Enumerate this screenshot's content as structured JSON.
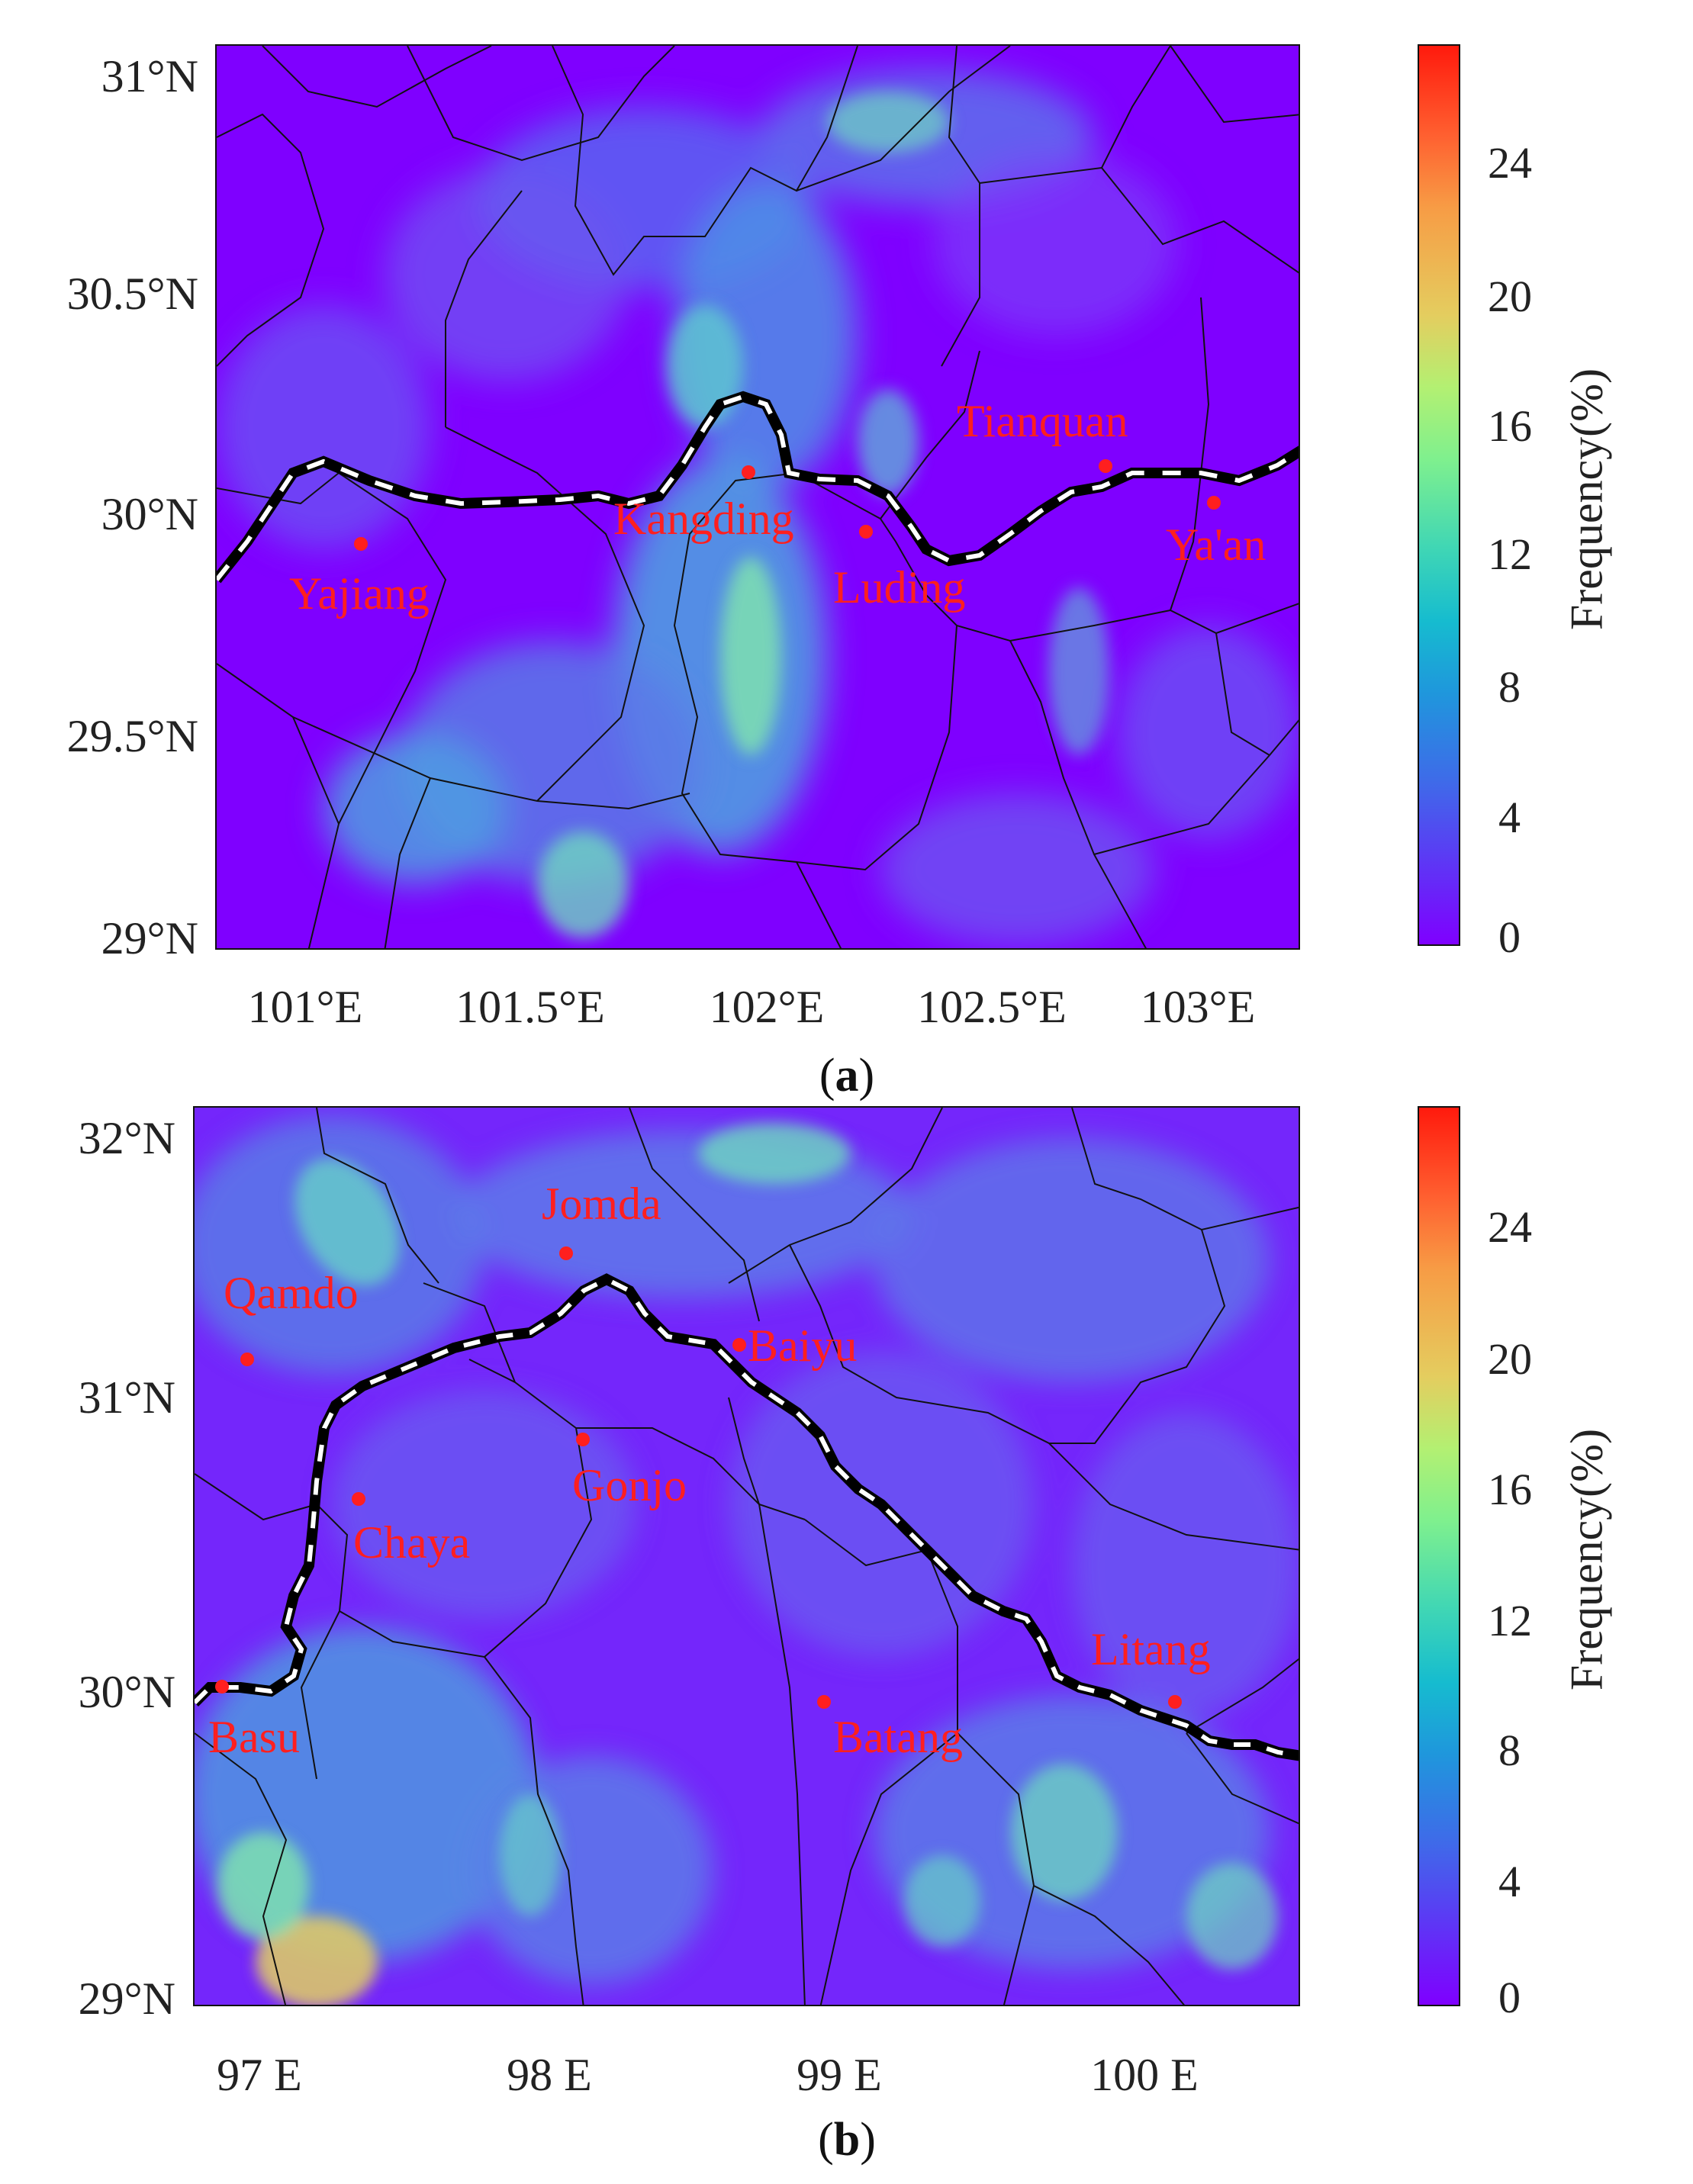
{
  "figure": {
    "panels": [
      {
        "id": "a",
        "caption_label": "a",
        "y_ticks": [
          "31°N",
          "30.5°N",
          "30°N",
          "29.5°N",
          "29°N"
        ],
        "x_ticks": [
          "101°E",
          "101.5°E",
          "102°E",
          "102.5°E",
          "103°E"
        ],
        "colorbar": {
          "ticks": [
            "24",
            "20",
            "16",
            "12",
            "8",
            "4",
            "0"
          ],
          "label": "Frequency(%)"
        },
        "cities": [
          {
            "name": "Tianquan"
          },
          {
            "name": "Kangding"
          },
          {
            "name": "Yajiang"
          },
          {
            "name": "Luding"
          },
          {
            "name": "Ya'an"
          }
        ]
      },
      {
        "id": "b",
        "caption_label": "b",
        "y_ticks": [
          "32°N",
          "31°N",
          "30°N",
          "29°N"
        ],
        "x_ticks": [
          "97 E",
          "98 E",
          "99 E",
          "100 E"
        ],
        "colorbar": {
          "ticks": [
            "24",
            "20",
            "16",
            "12",
            "8",
            "4",
            "0"
          ],
          "label": "Frequency(%)"
        },
        "cities": [
          {
            "name": "Jomda"
          },
          {
            "name": "Qamdo"
          },
          {
            "name": "Baiyu"
          },
          {
            "name": "Gonjo"
          },
          {
            "name": "Chaya"
          },
          {
            "name": "Litang"
          },
          {
            "name": "Basu"
          },
          {
            "name": "Batang"
          }
        ]
      }
    ],
    "colors": {
      "map_base": "#7f00ff",
      "city": "#ff1f1f",
      "boundary": "#111111"
    }
  }
}
